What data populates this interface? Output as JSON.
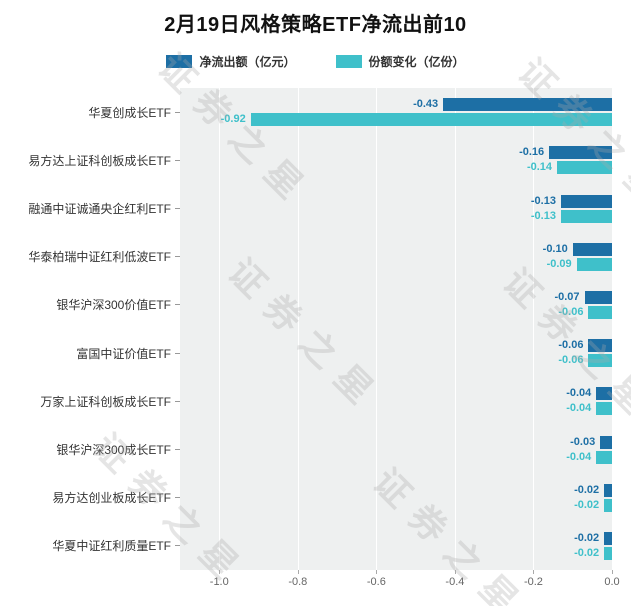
{
  "title": "2月19日风格策略ETF净流出前10",
  "watermark": {
    "text": "证券之星"
  },
  "legend": [
    {
      "label": "净流出额（亿元）",
      "color": "#1d6fa5"
    },
    {
      "label": "份额变化（亿份）",
      "color": "#3fc0ca"
    }
  ],
  "chart_data": {
    "type": "bar",
    "orientation": "horizontal",
    "title": "2月19日风格策略ETF净流出前10",
    "categories": [
      "华夏创成长ETF",
      "易方达上证科创板成长ETF",
      "融通中证诚通央企红利ETF",
      "华泰柏瑞中证红利低波ETF",
      "银华沪深300价值ETF",
      "富国中证价值ETF",
      "万家上证科创板成长ETF",
      "银华沪深300成长ETF",
      "易方达创业板成长ETF",
      "华夏中证红利质量ETF"
    ],
    "series": [
      {
        "name": "净流出额（亿元）",
        "color": "#1d6fa5",
        "values": [
          -0.43,
          -0.16,
          -0.13,
          -0.1,
          -0.07,
          -0.06,
          -0.04,
          -0.03,
          -0.02,
          -0.02
        ]
      },
      {
        "name": "份额变化（亿份）",
        "color": "#3fc0ca",
        "values": [
          -0.92,
          -0.14,
          -0.13,
          -0.09,
          -0.06,
          -0.06,
          -0.04,
          -0.04,
          -0.02,
          -0.02
        ]
      }
    ],
    "xlim": [
      -1.1,
      0
    ],
    "xtick_labels": [
      "-1.0",
      "-0.8",
      "-0.6",
      "-0.4",
      "-0.2",
      "0.0"
    ],
    "xtick_values": [
      -1.0,
      -0.8,
      -0.6,
      -0.4,
      -0.2,
      0.0
    ],
    "grid": true,
    "legend_position": "top",
    "plot_background": "#eef0f0"
  }
}
